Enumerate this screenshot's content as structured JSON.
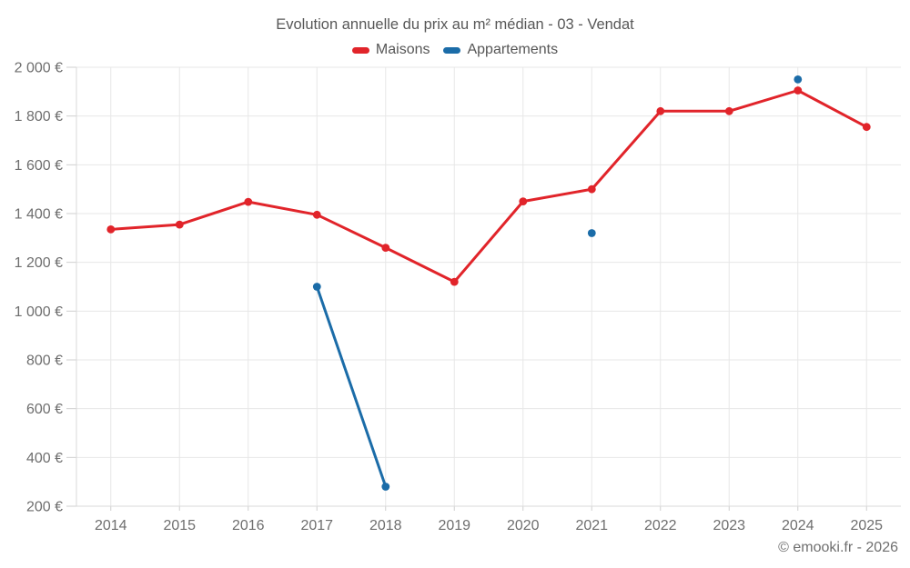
{
  "header": {
    "title": "Evolution annuelle du prix au m² médian - 03 - Vendat"
  },
  "legend": {
    "items": [
      {
        "label": "Maisons",
        "color": "#e1242a"
      },
      {
        "label": "Appartements",
        "color": "#1b6ca8"
      }
    ]
  },
  "footer": {
    "credit": "© emooki.fr - 2026"
  },
  "colors": {
    "background": "#ffffff",
    "grid": "#e7e7e7",
    "axis": "#dadada",
    "tick": "#cfcfcf",
    "tick_label": "#6e6e6e",
    "title_text": "#575757",
    "legend_text": "#565656",
    "footer_text": "#6f6f6f",
    "maisons": "#e1242a",
    "appartements": "#1b6ca8"
  },
  "chart_data": {
    "type": "line",
    "title": "Evolution annuelle du prix au m² médian - 03 - Vendat",
    "categories": [
      2014,
      2015,
      2016,
      2017,
      2018,
      2019,
      2020,
      2021,
      2022,
      2023,
      2024,
      2025
    ],
    "xtick_labels": [
      "2014",
      "2015",
      "2016",
      "2017",
      "2018",
      "2019",
      "2020",
      "2021",
      "2022",
      "2023",
      "2024",
      "2025"
    ],
    "series": [
      {
        "name": "Maisons",
        "color": "#e1242a",
        "values": [
          1335,
          1355,
          1448,
          1395,
          1260,
          1120,
          1450,
          1500,
          1820,
          1820,
          1905,
          1755
        ]
      },
      {
        "name": "Appartements",
        "color": "#1b6ca8",
        "values": [
          null,
          null,
          null,
          1100,
          280,
          null,
          null,
          1320,
          null,
          null,
          1950,
          null
        ]
      }
    ],
    "ylim": [
      200,
      2000
    ],
    "yticks": [
      200,
      400,
      600,
      800,
      1000,
      1200,
      1400,
      1600,
      1800,
      2000
    ],
    "ytick_labels": [
      "200 €",
      "400 €",
      "600 €",
      "800 €",
      "1 000 €",
      "1 200 €",
      "1 400 €",
      "1 600 €",
      "1 800 €",
      "2 000 €"
    ],
    "xlabel": "",
    "ylabel": "",
    "grid": true,
    "legend_position": "top",
    "marker": "circle"
  }
}
